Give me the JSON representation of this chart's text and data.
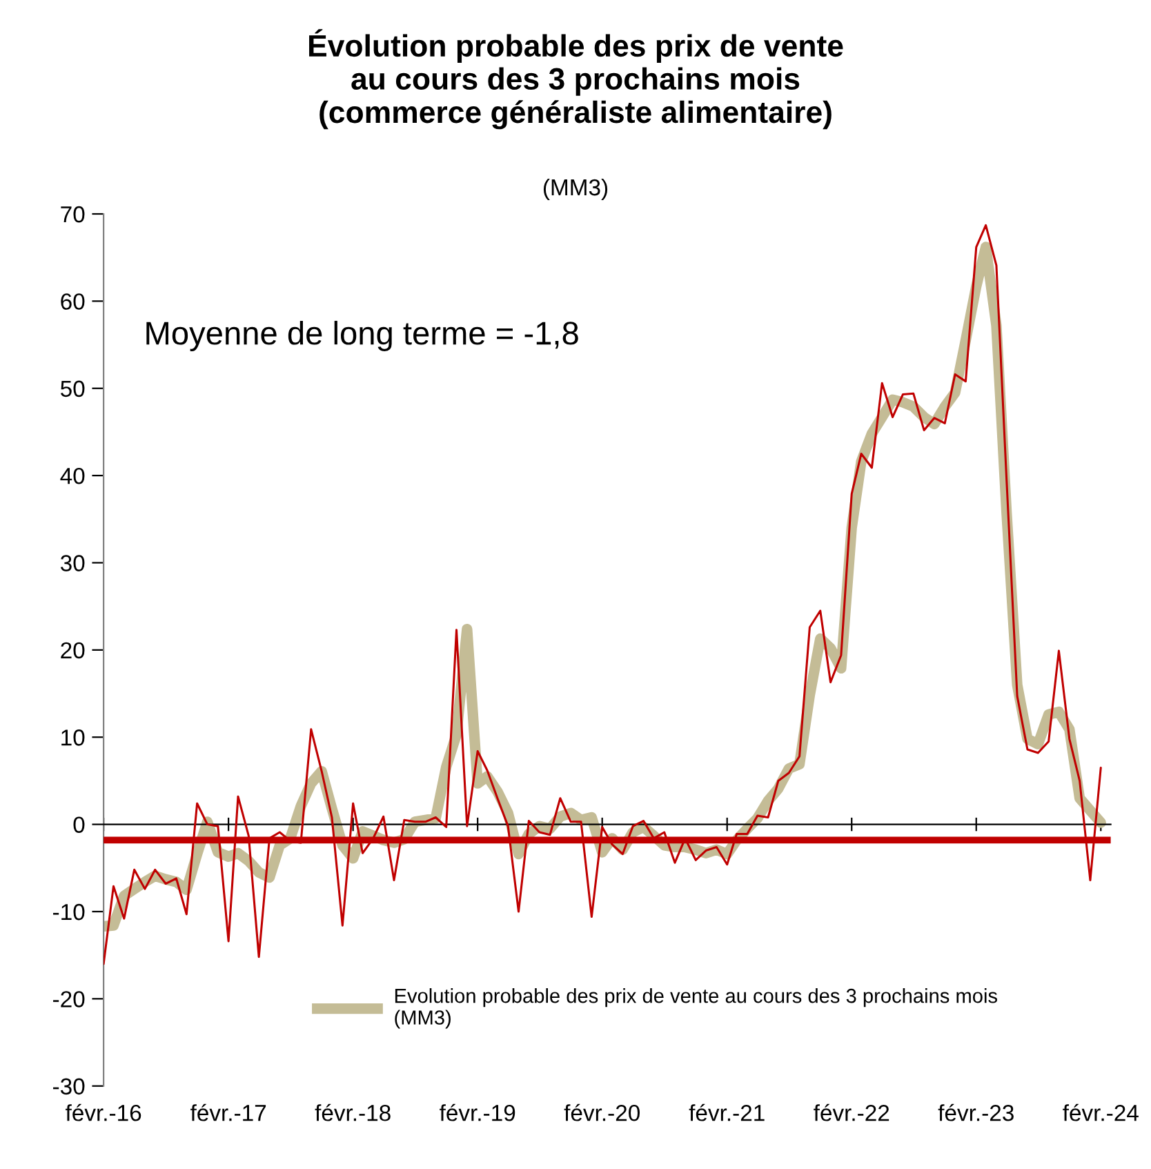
{
  "chart_data": {
    "type": "line",
    "title": "Évolution probable des prix de vente\nau cours des 3 prochains mois\n(commerce généraliste alimentaire)",
    "subtitle": "(MM3)",
    "annotations": [
      "Moyenne de long terme = -1,8"
    ],
    "x": [
      "2016-02",
      "2016-03",
      "2016-04",
      "2016-05",
      "2016-06",
      "2016-07",
      "2016-08",
      "2016-09",
      "2016-10",
      "2016-11",
      "2016-12",
      "2017-01",
      "2017-02",
      "2017-03",
      "2017-04",
      "2017-05",
      "2017-06",
      "2017-07",
      "2017-08",
      "2017-09",
      "2017-10",
      "2017-11",
      "2017-12",
      "2018-01",
      "2018-02",
      "2018-03",
      "2018-04",
      "2018-05",
      "2018-06",
      "2018-07",
      "2018-08",
      "2018-09",
      "2018-10",
      "2018-11",
      "2018-12",
      "2019-01",
      "2019-02",
      "2019-03",
      "2019-04",
      "2019-05",
      "2019-06",
      "2019-07",
      "2019-08",
      "2019-09",
      "2019-10",
      "2019-11",
      "2019-12",
      "2020-01",
      "2020-02",
      "2020-03",
      "2020-04",
      "2020-05",
      "2020-06",
      "2020-07",
      "2020-08",
      "2020-09",
      "2020-10",
      "2020-11",
      "2020-12",
      "2021-01",
      "2021-02",
      "2021-03",
      "2021-04",
      "2021-05",
      "2021-06",
      "2021-07",
      "2021-08",
      "2021-09",
      "2021-10",
      "2021-11",
      "2021-12",
      "2022-01",
      "2022-02",
      "2022-03",
      "2022-04",
      "2022-05",
      "2022-06",
      "2022-07",
      "2022-08",
      "2022-09",
      "2022-10",
      "2022-11",
      "2022-12",
      "2023-01",
      "2023-02",
      "2023-03",
      "2023-04",
      "2023-05",
      "2023-06",
      "2023-07",
      "2023-08",
      "2023-09",
      "2023-10",
      "2023-11",
      "2023-12",
      "2024-01",
      "2024-02"
    ],
    "series": [
      {
        "color": "#c00000",
        "values": [
          -16,
          -7.1,
          -10.8,
          -5.2,
          -7.4,
          -5.2,
          -6.8,
          -6.2,
          -10.3,
          2.4,
          0,
          -0.2,
          -13.4,
          3.2,
          -1.3,
          -15.2,
          -1.6,
          -0.9,
          -1.9,
          -2.1,
          10.9,
          6.1,
          0.8,
          -11.6,
          2.4,
          -3.3,
          -1.6,
          0.9,
          -6.4,
          0.5,
          0.3,
          0.3,
          0.8,
          -0.3,
          22.3,
          -0.2,
          8.4,
          6.2,
          2.9,
          -0.2,
          -10,
          0.4,
          -0.9,
          -1.2,
          3,
          0.3,
          0.3,
          -10.6,
          -0.3,
          -2.3,
          -3.4,
          -0.2,
          0.4,
          -1.6,
          -0.9,
          -4.4,
          -1.6,
          -4.1,
          -3,
          -2.6,
          -4.6,
          -1.1,
          -1.1,
          1,
          0.8,
          5,
          5.9,
          7.8,
          22.6,
          24.5,
          16.3,
          19.4,
          37.9,
          42.5,
          40.9,
          50.6,
          46.7,
          49.3,
          49.4,
          45.2,
          46.6,
          46,
          51.6,
          50.8,
          66.2,
          68.7,
          64.1,
          39.4,
          14.7,
          8.6,
          8.2,
          9.5,
          19.9,
          9.8,
          5,
          -6.4,
          6.5
        ]
      },
      {
        "name": "Evolution probable des prix de vente au cours des 3 prochains mois\n(MM3)",
        "color": "#c4bc96",
        "values": [
          -11.7,
          -11.6,
          -8.2,
          -7.4,
          -6.6,
          -5.9,
          -6.3,
          -6.6,
          -7.5,
          -3.4,
          0.3,
          -3.2,
          -3.7,
          -3.3,
          -4.2,
          -5.5,
          -6.1,
          -2.4,
          -1.6,
          2.1,
          4.7,
          6.1,
          1.8,
          -2.4,
          -3.9,
          -0.8,
          -1.3,
          -1.8,
          -2.1,
          -1.7,
          0.3,
          0.5,
          0.7,
          6.6,
          10.3,
          22.4,
          4.7,
          5.5,
          3.7,
          1.3,
          -3.4,
          -1.1,
          -0.2,
          -0.5,
          0.9,
          1.3,
          0.5,
          0.8,
          -3.2,
          -1.6,
          -2.9,
          -0.9,
          -0.3,
          -1.3,
          -2.4,
          -2.6,
          -2.6,
          -2.9,
          -3.3,
          -2.9,
          -3.4,
          -1.8,
          -0.5,
          0.7,
          2.7,
          4.1,
          6.4,
          6.9,
          14.8,
          21.3,
          20.2,
          17.9,
          34,
          41.6,
          44.8,
          46.7,
          48.7,
          48.4,
          47.9,
          46.7,
          45.9,
          47.9,
          49.5,
          55.5,
          61.7,
          66.2,
          57.2,
          35.7,
          16,
          9.8,
          9.2,
          12.6,
          12.9,
          10.9,
          3,
          1.6,
          0.2
        ]
      }
    ],
    "ref_lines": [
      {
        "axis": "y",
        "value": -1.8,
        "color": "#c00000"
      }
    ],
    "xlim": [
      "2016-02",
      "2024-03"
    ],
    "xticks": [
      {
        "value": "2016-02",
        "label": "févr.-16"
      },
      {
        "value": "2017-02",
        "label": "févr.-17"
      },
      {
        "value": "2018-02",
        "label": "févr.-18"
      },
      {
        "value": "2019-02",
        "label": "févr.-19"
      },
      {
        "value": "2020-02",
        "label": "févr.-20"
      },
      {
        "value": "2021-02",
        "label": "févr.-21"
      },
      {
        "value": "2022-02",
        "label": "févr.-22"
      },
      {
        "value": "2023-02",
        "label": "févr.-23"
      },
      {
        "value": "2024-02",
        "label": "févr.-24"
      }
    ],
    "ylim": [
      -30,
      70
    ],
    "yticks": [
      -30,
      -20,
      -10,
      0,
      10,
      20,
      30,
      40,
      50,
      60,
      70
    ],
    "legend": "bottom",
    "marker": "none",
    "line_style": "solid"
  }
}
